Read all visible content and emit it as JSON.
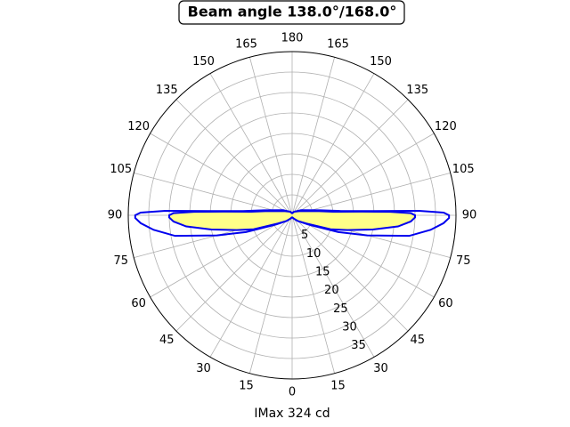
{
  "chart_data": {
    "type": "polar",
    "title": "Beam angle 138.0°/168.0°",
    "xlabel": "IMax 324 cd",
    "grid": true,
    "ylim": [
      0,
      40
    ],
    "yticks": [
      5,
      10,
      15,
      20,
      25,
      30,
      35
    ],
    "xticks": [
      0,
      15,
      30,
      45,
      60,
      75,
      90,
      105,
      120,
      135,
      150,
      165,
      180,
      {
        "value": 195,
        "label": "165"
      },
      {
        "value": 210,
        "label": "150"
      },
      {
        "value": 225,
        "label": "135"
      },
      {
        "value": 240,
        "label": "120"
      },
      {
        "value": 255,
        "label": "105"
      },
      {
        "value": 270,
        "label": "90"
      },
      {
        "value": 285,
        "label": "75"
      },
      {
        "value": 300,
        "label": "60"
      },
      {
        "value": 315,
        "label": "45"
      },
      {
        "value": 330,
        "label": "30"
      },
      {
        "value": 345,
        "label": "15"
      }
    ],
    "series": [
      {
        "color": "#0000ee",
        "x": [
          0,
          15,
          30,
          45,
          60,
          70,
          75,
          80,
          84,
          87,
          89,
          90,
          91,
          92,
          93,
          95,
          100,
          120,
          150,
          180,
          210,
          240,
          260,
          265,
          267,
          268,
          269,
          270,
          271,
          273,
          276,
          280,
          285,
          290,
          300,
          315,
          330,
          345,
          360
        ],
        "values": [
          0.5,
          0.6,
          1,
          2,
          4.5,
          12,
          19,
          29,
          34,
          37,
          38.3,
          38.3,
          37,
          31,
          20,
          12,
          7,
          2.5,
          1,
          0.5,
          1,
          2.5,
          7,
          12,
          20,
          31,
          37,
          38.3,
          38.3,
          37,
          34,
          29,
          19,
          12,
          4.5,
          2,
          1,
          0.6,
          0.5
        ]
      },
      {
        "color": "#0000ee",
        "fill": "#ffff88",
        "x": [
          0,
          15,
          30,
          45,
          60,
          70,
          75,
          80,
          84,
          87,
          89,
          90,
          91,
          92,
          93,
          95,
          100,
          120,
          150,
          180,
          210,
          240,
          260,
          265,
          267,
          268,
          269,
          270,
          271,
          273,
          276,
          280,
          285,
          290,
          300,
          315,
          330,
          345,
          360
        ],
        "values": [
          0.5,
          0.6,
          1,
          2,
          4,
          10,
          14,
          20,
          26,
          29,
          30,
          30,
          29,
          24,
          17,
          10,
          6,
          2,
          1,
          0.5,
          1,
          2,
          6,
          10,
          17,
          24,
          29,
          30,
          30,
          29,
          26,
          20,
          14,
          10,
          4,
          2,
          1,
          0.6,
          0.5
        ]
      }
    ]
  }
}
